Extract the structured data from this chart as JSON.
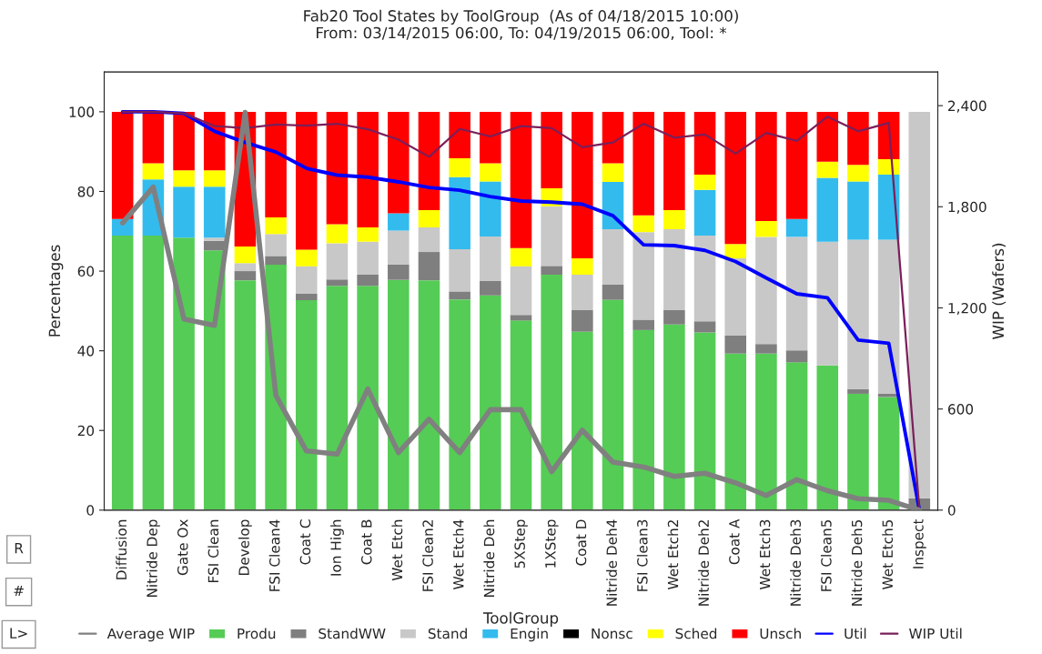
{
  "chart_data": {
    "type": "bar",
    "stacked": true,
    "title": "Fab20 Tool States by ToolGroup  (As of 04/18/2015 10:00)",
    "subtitle": "From: 03/14/2015 06:00, To: 04/19/2015 06:00, Tool: *",
    "xlabel": "ToolGroup",
    "ylabel": "Percentages",
    "y2label": "WIP (Wafers)",
    "categories": [
      "Diffusion",
      "Nitride Dep",
      "Gate Ox",
      "FSI Clean",
      "Develop",
      "FSI Clean4",
      "Coat C",
      "Ion High",
      "Coat B",
      "Wet Etch",
      "FSI Clean2",
      "Wet Etch4",
      "Nitride Deh",
      "5XStep",
      "1XStep",
      "Coat D",
      "Nitride Deh4",
      "FSI Clean3",
      "Wet Etch2",
      "Nitride Deh2",
      "Coat A",
      "Wet Etch3",
      "Nitride Deh3",
      "FSI Clean5",
      "Nitride Deh5",
      "Wet Etch5",
      "Inspect"
    ],
    "series": [
      {
        "name": "Average WIP",
        "type": "line",
        "axis": "y2",
        "color": "#808080",
        "values": [
          1704,
          1917,
          1134,
          1096,
          2360,
          681,
          351,
          332,
          719,
          341,
          539,
          341,
          596,
          596,
          228,
          474,
          285,
          256,
          200,
          219,
          162,
          87,
          181,
          115,
          68,
          58,
          0
        ]
      },
      {
        "name": "Produ",
        "color": "#55cc55",
        "values": [
          68.9,
          68.9,
          68.4,
          65.2,
          57.7,
          61.6,
          52.7,
          56.3,
          56.3,
          57.8,
          57.7,
          52.9,
          53.9,
          47.6,
          59.1,
          44.8,
          52.8,
          45.2,
          46.6,
          44.6,
          39.3,
          39.3,
          37.1,
          36.3,
          29.2,
          28.4,
          0
        ]
      },
      {
        "name": "StandWW",
        "color": "#7f7f7f",
        "values": [
          0,
          0,
          0,
          2.4,
          2.3,
          2.2,
          1.6,
          1.6,
          2.8,
          3.9,
          7.1,
          2.0,
          3.6,
          1.4,
          2.2,
          5.4,
          3.8,
          2.6,
          3.6,
          2.8,
          4.5,
          2.4,
          3.0,
          0,
          1.2,
          0.8,
          3.0
        ]
      },
      {
        "name": "Stand",
        "color": "#c8c8c8",
        "values": [
          0,
          0,
          0,
          0.8,
          2.0,
          5.5,
          6.9,
          9.1,
          8.3,
          8.5,
          6.2,
          10.6,
          11.2,
          12.2,
          15.0,
          8.9,
          13.9,
          22.0,
          20.3,
          21.5,
          19.4,
          26.9,
          28.5,
          31.1,
          37.5,
          38.7,
          97.0
        ]
      },
      {
        "name": "Engin",
        "color": "#33bbee",
        "values": [
          4.2,
          14.1,
          12.8,
          12.8,
          0,
          0,
          0,
          0,
          0,
          4.3,
          0,
          18.1,
          13.8,
          0,
          0,
          0,
          11.9,
          0,
          0,
          11.5,
          0,
          0,
          4.5,
          16.0,
          14.6,
          16.3,
          0
        ]
      },
      {
        "name": "Nonsc",
        "color": "#000000",
        "values": [
          0,
          0,
          0,
          0,
          0,
          0,
          0,
          0,
          0,
          0,
          0,
          0,
          0,
          0,
          0,
          0,
          0,
          0,
          0,
          0,
          0,
          0,
          0,
          0,
          0,
          0,
          0
        ]
      },
      {
        "name": "Sched",
        "color": "#ffff00",
        "values": [
          0,
          4.1,
          4.1,
          4.1,
          4.2,
          4.2,
          4.2,
          4.8,
          3.6,
          0,
          4.3,
          4.7,
          4.6,
          4.6,
          4.5,
          4.1,
          4.7,
          4.2,
          4.8,
          3.8,
          3.6,
          4.0,
          0,
          4.1,
          4.2,
          3.9,
          0
        ]
      },
      {
        "name": "Unsch",
        "color": "#ff0000",
        "values": [
          26.9,
          12.9,
          14.7,
          14.7,
          33.8,
          26.5,
          34.6,
          28.2,
          29.0,
          25.5,
          24.7,
          11.7,
          12.9,
          34.2,
          19.2,
          36.8,
          12.9,
          26.0,
          24.7,
          15.8,
          33.2,
          27.4,
          26.9,
          12.5,
          13.3,
          11.9,
          0
        ]
      },
      {
        "name": "Util",
        "type": "line",
        "color": "#0000ff",
        "values": [
          100,
          100,
          99.6,
          95.1,
          92.3,
          89.9,
          85.8,
          84.1,
          83.6,
          82.4,
          81.0,
          80.3,
          78.7,
          77.6,
          77.3,
          76.8,
          73.9,
          66.6,
          66.4,
          65.2,
          62.4,
          58.3,
          54.3,
          53.3,
          42.7,
          41.9,
          0
        ]
      },
      {
        "name": "WIP Util",
        "type": "line",
        "color": "#7a1f5a",
        "values": [
          100,
          100,
          99.6,
          96.4,
          95.9,
          96.8,
          96.5,
          97.0,
          95.6,
          93.0,
          88.7,
          95.7,
          93.8,
          96.4,
          95.9,
          91.1,
          92.3,
          97.0,
          93.5,
          94.3,
          89.5,
          94.7,
          92.7,
          98.8,
          95.1,
          97.2,
          0
        ]
      }
    ],
    "ylim": [
      0,
      110
    ],
    "yticks": [
      0,
      20,
      40,
      60,
      80,
      100
    ],
    "y2lim": [
      0,
      2600
    ],
    "y2ticks": [
      0,
      {
        "value": 600,
        "label": "600"
      },
      {
        "value": 1200,
        "label": "1,200"
      },
      {
        "value": 1800,
        "label": "1,800"
      },
      {
        "value": 2400,
        "label": "2,400"
      }
    ],
    "grid": false,
    "legend": "bottom",
    "marker": "none",
    "annotations": [
      "R",
      "#",
      "L>"
    ]
  }
}
